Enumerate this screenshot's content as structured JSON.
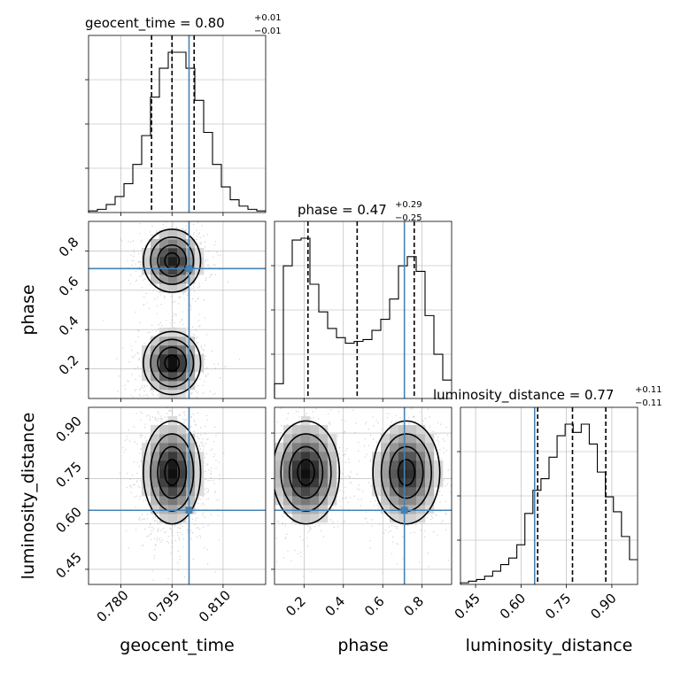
{
  "chart_data": {
    "type": "corner",
    "parameters": [
      "geocent_time",
      "phase",
      "luminosity_distance"
    ],
    "truths": {
      "geocent_time": 0.8,
      "phase": 0.71,
      "luminosity_distance": 0.645
    },
    "colors": {
      "truth": "#4682b4",
      "contour": "#000000",
      "grid": "#b0b0b0",
      "scatter": "#9a9a9a"
    },
    "grid": true,
    "titles": [
      {
        "param": "geocent_time",
        "text": "geocent_time = 0.80",
        "sup": "+0.01",
        "sub": "−0.01"
      },
      {
        "param": "phase",
        "text": "phase = 0.47",
        "sup": "+0.29",
        "sub": "−0.25"
      },
      {
        "param": "luminosity_distance",
        "text": "luminosity_distance = 0.77",
        "sup": "+0.11",
        "sub": "−0.11"
      }
    ],
    "axis_labels": {
      "x": [
        "geocent_time",
        "phase",
        "luminosity_distance"
      ],
      "y": [
        "phase",
        "luminosity_distance"
      ]
    },
    "ranges": {
      "geocent_time": [
        0.7705,
        0.8225
      ],
      "phase": [
        0.05,
        0.95
      ],
      "luminosity_distance": [
        0.4,
        0.985
      ]
    },
    "ticks": {
      "geocent_time": {
        "values": [
          0.78,
          0.795,
          0.81
        ],
        "labels": [
          "0.780",
          "0.795",
          "0.810"
        ]
      },
      "phase": {
        "values": [
          0.2,
          0.4,
          0.6,
          0.8
        ],
        "labels": [
          "0.2",
          "0.4",
          "0.6",
          "0.8"
        ]
      },
      "luminosity_distance": {
        "values": [
          0.45,
          0.6,
          0.75,
          0.9
        ],
        "labels": [
          "0.45",
          "0.60",
          "0.75",
          "0.90"
        ]
      }
    },
    "histograms": [
      {
        "param": "geocent_time",
        "quantiles": [
          0.789,
          0.795,
          0.8015
        ],
        "counts": [
          0.01,
          0.02,
          0.05,
          0.1,
          0.18,
          0.3,
          0.48,
          0.72,
          0.9,
          1.0,
          1.0,
          0.9,
          0.7,
          0.5,
          0.3,
          0.16,
          0.08,
          0.04,
          0.02,
          0.01
        ]
      },
      {
        "param": "phase",
        "quantiles": [
          0.22,
          0.47,
          0.76
        ],
        "counts": [
          0.08,
          0.72,
          0.86,
          0.87,
          0.62,
          0.47,
          0.38,
          0.33,
          0.3,
          0.31,
          0.32,
          0.37,
          0.43,
          0.54,
          0.72,
          0.77,
          0.69,
          0.45,
          0.24,
          0.1
        ]
      },
      {
        "param": "luminosity_distance",
        "quantiles": [
          0.655,
          0.77,
          0.88
        ],
        "counts": [
          0.01,
          0.02,
          0.03,
          0.05,
          0.08,
          0.12,
          0.16,
          0.24,
          0.43,
          0.57,
          0.64,
          0.77,
          0.9,
          0.97,
          0.92,
          0.97,
          0.85,
          0.68,
          0.53,
          0.44,
          0.29,
          0.15
        ]
      }
    ],
    "pair_densities": [
      {
        "x": "geocent_time",
        "y": "phase",
        "modes": [
          {
            "mx": 0.795,
            "my": 0.23,
            "sx": 0.0042,
            "sy": 0.08,
            "w": 1.0
          },
          {
            "mx": 0.795,
            "my": 0.75,
            "sx": 0.0042,
            "sy": 0.08,
            "w": 0.9
          }
        ]
      },
      {
        "x": "geocent_time",
        "y": "luminosity_distance",
        "modes": [
          {
            "mx": 0.795,
            "my": 0.77,
            "sx": 0.0042,
            "sy": 0.085,
            "w": 1.0
          }
        ]
      },
      {
        "x": "phase",
        "y": "luminosity_distance",
        "modes": [
          {
            "mx": 0.21,
            "my": 0.77,
            "sx": 0.085,
            "sy": 0.085,
            "w": 1.0
          },
          {
            "mx": 0.72,
            "my": 0.77,
            "sx": 0.085,
            "sy": 0.085,
            "w": 0.9
          }
        ]
      }
    ]
  }
}
